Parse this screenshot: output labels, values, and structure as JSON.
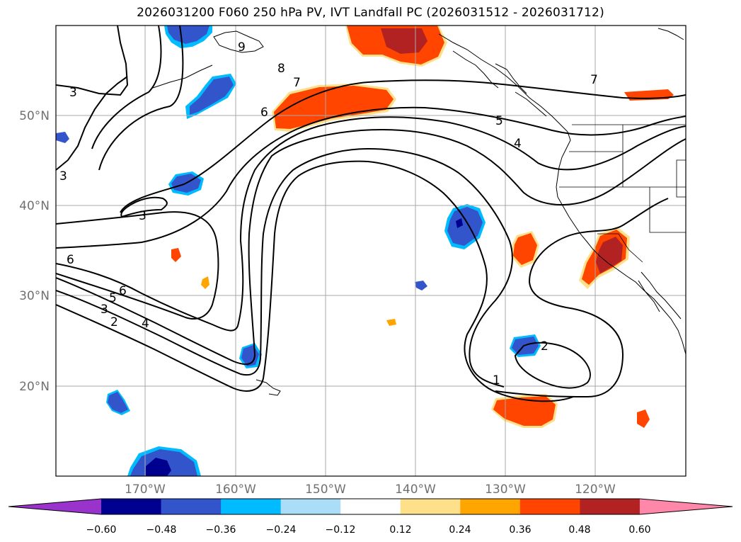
{
  "title": "2026031200 F060 250 hPa PV, IVT Landfall PC (2026031512 - 2026031712)",
  "map": {
    "lat_ticks": [
      "50°N",
      "40°N",
      "30°N",
      "20°N"
    ],
    "lon_ticks": [
      "170°W",
      "160°W",
      "150°W",
      "140°W",
      "130°W",
      "120°W"
    ],
    "gridlines": true,
    "contour_labels": [
      "3",
      "9",
      "8",
      "7",
      "6",
      "5",
      "4",
      "7",
      "3",
      "3",
      "6",
      "6",
      "5",
      "3",
      "2",
      "4",
      "2",
      "1"
    ]
  },
  "colorbar": {
    "ticks": [
      "−0.60",
      "−0.48",
      "−0.36",
      "−0.24",
      "−0.12",
      "0.12",
      "0.24",
      "0.36",
      "0.48",
      "0.60"
    ],
    "colors": [
      "#9933cc",
      "#000090",
      "#3355cc",
      "#00bbff",
      "#aaddf8",
      "#ffffff",
      "#ffe08a",
      "#ffa500",
      "#ff4500",
      "#b22222",
      "#ff88aa"
    ],
    "extend": "both"
  }
}
